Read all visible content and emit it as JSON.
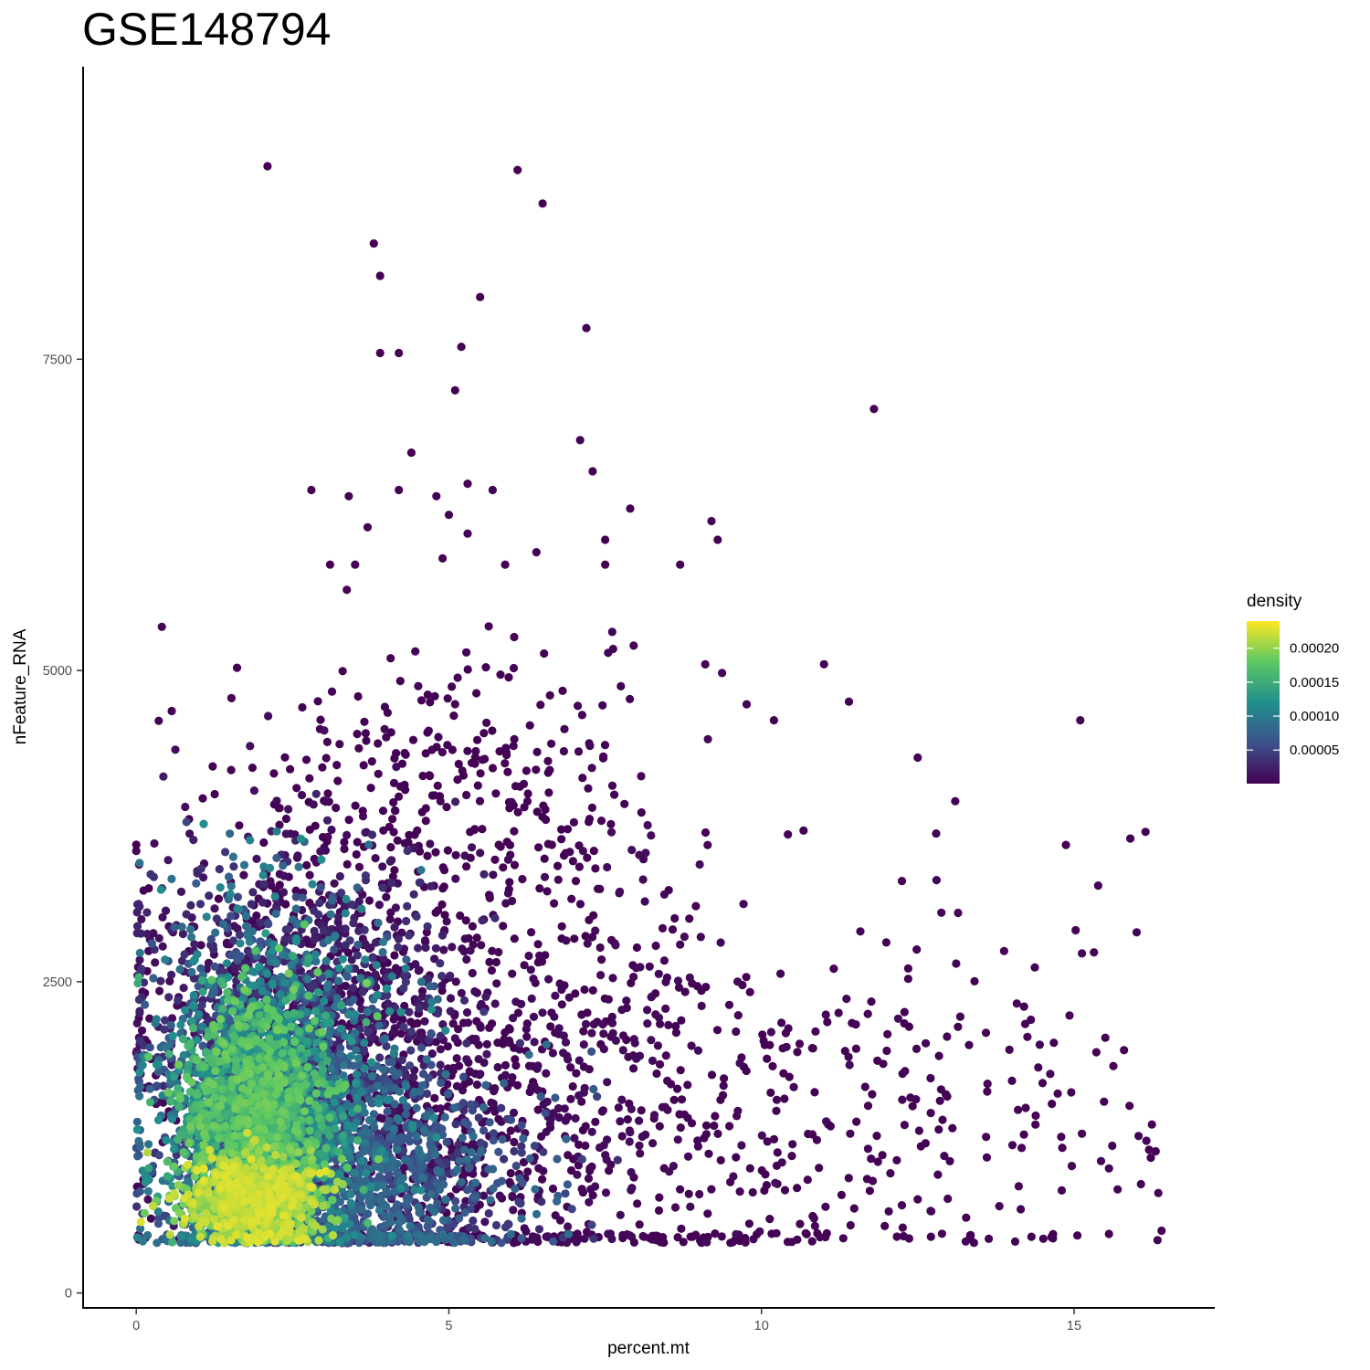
{
  "chart_data": {
    "type": "scatter",
    "title": "GSE148794",
    "xlabel": "percent.mt",
    "ylabel": "nFeature_RNA",
    "xlim": [
      -0.85,
      17.25
    ],
    "ylim": [
      -120,
      9850
    ],
    "x_ticks": [
      0,
      5,
      10,
      15
    ],
    "y_ticks": [
      0,
      2500,
      5000,
      7500
    ],
    "grid": false,
    "color_scale": {
      "name": "density",
      "palette": "viridis",
      "colors": [
        "#440154",
        "#3b528b",
        "#21908c",
        "#5dc863",
        "#fde725"
      ],
      "range": [
        5e-07,
        0.00024
      ],
      "breaks": [
        5e-05,
        0.0001,
        0.00015,
        0.0002
      ],
      "break_labels": [
        "0.00005",
        "0.00010",
        "0.00015",
        "0.00020"
      ]
    },
    "legend_position": "right",
    "outlier_points": [
      [
        2.1,
        9050
      ],
      [
        6.1,
        9020
      ],
      [
        6.5,
        8750
      ],
      [
        3.8,
        8430
      ],
      [
        3.9,
        8170
      ],
      [
        5.5,
        8000
      ],
      [
        7.2,
        7750
      ],
      [
        3.9,
        7550
      ],
      [
        4.2,
        7550
      ],
      [
        5.2,
        7600
      ],
      [
        5.1,
        7250
      ],
      [
        11.8,
        7100
      ],
      [
        7.1,
        6850
      ],
      [
        4.4,
        6750
      ],
      [
        7.3,
        6600
      ],
      [
        2.8,
        6450
      ],
      [
        3.4,
        6400
      ],
      [
        4.2,
        6450
      ],
      [
        5.3,
        6500
      ],
      [
        5.7,
        6450
      ],
      [
        4.8,
        6400
      ],
      [
        7.9,
        6300
      ],
      [
        9.2,
        6200
      ],
      [
        9.3,
        6050
      ],
      [
        3.7,
        6150
      ],
      [
        5.0,
        6250
      ],
      [
        5.3,
        6100
      ],
      [
        7.5,
        6050
      ],
      [
        6.4,
        5950
      ],
      [
        3.1,
        5850
      ],
      [
        3.5,
        5850
      ],
      [
        4.9,
        5900
      ],
      [
        5.9,
        5850
      ],
      [
        7.5,
        5850
      ],
      [
        8.7,
        5850
      ],
      [
        11.0,
        5050
      ],
      [
        10.2,
        4600
      ],
      [
        15.1,
        4600
      ],
      [
        11.4,
        4750
      ],
      [
        12.5,
        4300
      ],
      [
        15.9,
        3650
      ],
      [
        13.1,
        3950
      ],
      [
        14.2,
        2300
      ],
      [
        16.2,
        1150
      ],
      [
        16.4,
        500
      ],
      [
        15.8,
        1950
      ],
      [
        15.5,
        2050
      ],
      [
        0,
        3600
      ],
      [
        0,
        3550
      ],
      [
        0.2,
        3250
      ]
    ],
    "clusters": [
      {
        "cx": 1.9,
        "cy": 750,
        "sx": 0.55,
        "sy": 180,
        "n": 900,
        "dmin": 0.00018,
        "dmax": 0.00023
      },
      {
        "cx": 1.9,
        "cy": 1400,
        "sx": 0.6,
        "sy": 500,
        "n": 1300,
        "dmin": 0.00012,
        "dmax": 0.00019
      },
      {
        "cx": 2.2,
        "cy": 1500,
        "sx": 0.95,
        "sy": 750,
        "n": 1800,
        "dmin": 5e-05,
        "dmax": 0.00012
      },
      {
        "cx": 3.5,
        "cy": 900,
        "sx": 1.4,
        "sy": 480,
        "n": 1200,
        "dmin": 3e-05,
        "dmax": 9e-05
      },
      {
        "cx": 2.6,
        "cy": 2300,
        "sx": 1.3,
        "sy": 650,
        "n": 900,
        "dmin": 3e-06,
        "dmax": 4e-05
      },
      {
        "cx": 4.8,
        "cy": 1600,
        "sx": 2.3,
        "sy": 1000,
        "n": 1100,
        "dmin": 5e-07,
        "dmax": 1e-05
      },
      {
        "cx": 10.5,
        "cy": 1400,
        "sx": 3.2,
        "sy": 900,
        "n": 420,
        "dmin": 5e-07,
        "dmax": 2e-06
      },
      {
        "cx": 5.0,
        "cy": 4000,
        "sx": 1.8,
        "sy": 700,
        "n": 320,
        "dmin": 5e-07,
        "dmax": 2e-06
      }
    ]
  }
}
